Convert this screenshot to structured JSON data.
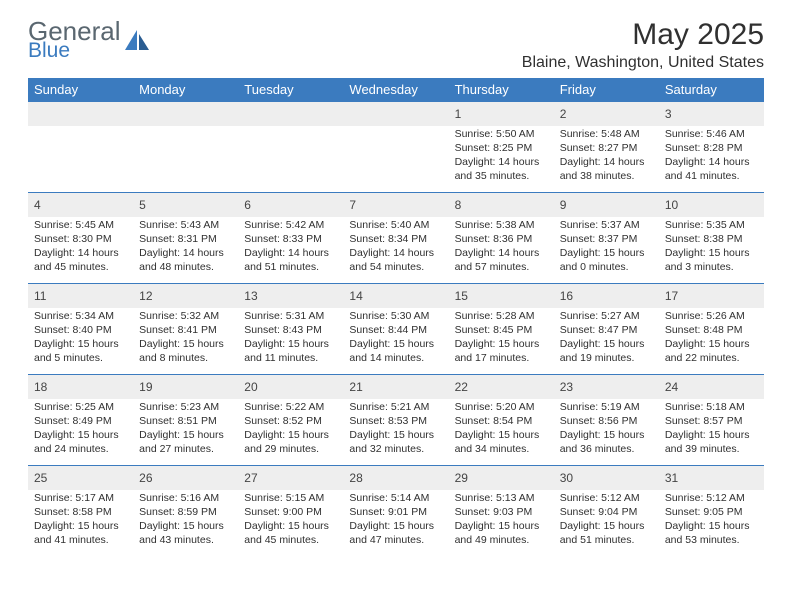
{
  "logo": {
    "general": "General",
    "blue": "Blue"
  },
  "month_title": "May 2025",
  "location": "Blaine, Washington, United States",
  "style": {
    "header_bg": "#3b7bbf",
    "header_fg": "#ffffff",
    "daynum_bg": "#eeeeee",
    "body_fg": "#303030",
    "logo_gray": "#5a6770",
    "logo_blue": "#3b7bbf",
    "border_color": "#3b7bbf",
    "title_fontsize": 30,
    "location_fontsize": 16,
    "dayhead_fontsize": 13,
    "daynum_fontsize": 12,
    "cell_fontsize": 10.5
  },
  "day_headers": [
    "Sunday",
    "Monday",
    "Tuesday",
    "Wednesday",
    "Thursday",
    "Friday",
    "Saturday"
  ],
  "weeks": [
    {
      "nums": [
        "",
        "",
        "",
        "",
        "1",
        "2",
        "3"
      ],
      "cells": [
        null,
        null,
        null,
        null,
        {
          "sunrise": "5:50 AM",
          "sunset": "8:25 PM",
          "daylight": "14 hours and 35 minutes."
        },
        {
          "sunrise": "5:48 AM",
          "sunset": "8:27 PM",
          "daylight": "14 hours and 38 minutes."
        },
        {
          "sunrise": "5:46 AM",
          "sunset": "8:28 PM",
          "daylight": "14 hours and 41 minutes."
        }
      ]
    },
    {
      "nums": [
        "4",
        "5",
        "6",
        "7",
        "8",
        "9",
        "10"
      ],
      "cells": [
        {
          "sunrise": "5:45 AM",
          "sunset": "8:30 PM",
          "daylight": "14 hours and 45 minutes."
        },
        {
          "sunrise": "5:43 AM",
          "sunset": "8:31 PM",
          "daylight": "14 hours and 48 minutes."
        },
        {
          "sunrise": "5:42 AM",
          "sunset": "8:33 PM",
          "daylight": "14 hours and 51 minutes."
        },
        {
          "sunrise": "5:40 AM",
          "sunset": "8:34 PM",
          "daylight": "14 hours and 54 minutes."
        },
        {
          "sunrise": "5:38 AM",
          "sunset": "8:36 PM",
          "daylight": "14 hours and 57 minutes."
        },
        {
          "sunrise": "5:37 AM",
          "sunset": "8:37 PM",
          "daylight": "15 hours and 0 minutes."
        },
        {
          "sunrise": "5:35 AM",
          "sunset": "8:38 PM",
          "daylight": "15 hours and 3 minutes."
        }
      ]
    },
    {
      "nums": [
        "11",
        "12",
        "13",
        "14",
        "15",
        "16",
        "17"
      ],
      "cells": [
        {
          "sunrise": "5:34 AM",
          "sunset": "8:40 PM",
          "daylight": "15 hours and 5 minutes."
        },
        {
          "sunrise": "5:32 AM",
          "sunset": "8:41 PM",
          "daylight": "15 hours and 8 minutes."
        },
        {
          "sunrise": "5:31 AM",
          "sunset": "8:43 PM",
          "daylight": "15 hours and 11 minutes."
        },
        {
          "sunrise": "5:30 AM",
          "sunset": "8:44 PM",
          "daylight": "15 hours and 14 minutes."
        },
        {
          "sunrise": "5:28 AM",
          "sunset": "8:45 PM",
          "daylight": "15 hours and 17 minutes."
        },
        {
          "sunrise": "5:27 AM",
          "sunset": "8:47 PM",
          "daylight": "15 hours and 19 minutes."
        },
        {
          "sunrise": "5:26 AM",
          "sunset": "8:48 PM",
          "daylight": "15 hours and 22 minutes."
        }
      ]
    },
    {
      "nums": [
        "18",
        "19",
        "20",
        "21",
        "22",
        "23",
        "24"
      ],
      "cells": [
        {
          "sunrise": "5:25 AM",
          "sunset": "8:49 PM",
          "daylight": "15 hours and 24 minutes."
        },
        {
          "sunrise": "5:23 AM",
          "sunset": "8:51 PM",
          "daylight": "15 hours and 27 minutes."
        },
        {
          "sunrise": "5:22 AM",
          "sunset": "8:52 PM",
          "daylight": "15 hours and 29 minutes."
        },
        {
          "sunrise": "5:21 AM",
          "sunset": "8:53 PM",
          "daylight": "15 hours and 32 minutes."
        },
        {
          "sunrise": "5:20 AM",
          "sunset": "8:54 PM",
          "daylight": "15 hours and 34 minutes."
        },
        {
          "sunrise": "5:19 AM",
          "sunset": "8:56 PM",
          "daylight": "15 hours and 36 minutes."
        },
        {
          "sunrise": "5:18 AM",
          "sunset": "8:57 PM",
          "daylight": "15 hours and 39 minutes."
        }
      ]
    },
    {
      "nums": [
        "25",
        "26",
        "27",
        "28",
        "29",
        "30",
        "31"
      ],
      "cells": [
        {
          "sunrise": "5:17 AM",
          "sunset": "8:58 PM",
          "daylight": "15 hours and 41 minutes."
        },
        {
          "sunrise": "5:16 AM",
          "sunset": "8:59 PM",
          "daylight": "15 hours and 43 minutes."
        },
        {
          "sunrise": "5:15 AM",
          "sunset": "9:00 PM",
          "daylight": "15 hours and 45 minutes."
        },
        {
          "sunrise": "5:14 AM",
          "sunset": "9:01 PM",
          "daylight": "15 hours and 47 minutes."
        },
        {
          "sunrise": "5:13 AM",
          "sunset": "9:03 PM",
          "daylight": "15 hours and 49 minutes."
        },
        {
          "sunrise": "5:12 AM",
          "sunset": "9:04 PM",
          "daylight": "15 hours and 51 minutes."
        },
        {
          "sunrise": "5:12 AM",
          "sunset": "9:05 PM",
          "daylight": "15 hours and 53 minutes."
        }
      ]
    }
  ],
  "labels": {
    "sunrise": "Sunrise:",
    "sunset": "Sunset:",
    "daylight": "Daylight:"
  }
}
